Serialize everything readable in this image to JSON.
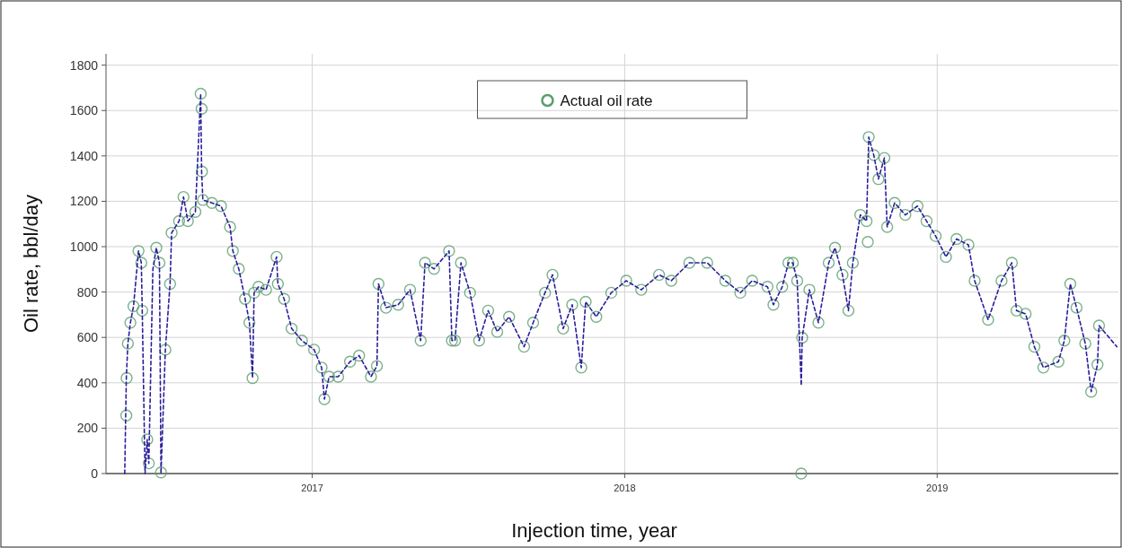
{
  "chart_data": {
    "type": "scatter",
    "xlabel": "Injection time, year",
    "ylabel": "Oil rate, bbl/day",
    "xlim": [
      2016.34,
      2019.58
    ],
    "xticks": [
      2017,
      2018,
      2019
    ],
    "ylim": [
      0,
      1850
    ],
    "yticks": [
      0,
      200,
      400,
      600,
      800,
      1000,
      1200,
      1400,
      1600,
      1800
    ],
    "grid": true,
    "legend": "top",
    "series": [
      {
        "name": "Actual oil rate",
        "marker": "circle",
        "color": "#5a9e6f",
        "x": [
          2016.405,
          2016.406,
          2016.41,
          2016.418,
          2016.428,
          2016.444,
          2016.453,
          2016.456,
          2016.472,
          2016.477,
          2016.501,
          2016.511,
          2016.516,
          2016.53,
          2016.545,
          2016.55,
          2016.574,
          2016.588,
          2016.602,
          2016.626,
          2016.643,
          2016.646,
          2016.647,
          2016.65,
          2016.679,
          2016.708,
          2016.737,
          2016.746,
          2016.765,
          2016.785,
          2016.799,
          2016.809,
          2016.814,
          2016.828,
          2016.852,
          2016.886,
          2016.89,
          2016.91,
          2016.934,
          2016.967,
          2017.006,
          2017.03,
          2017.039,
          2017.054,
          2017.083,
          2017.121,
          2017.15,
          2017.188,
          2017.207,
          2017.212,
          2017.236,
          2017.275,
          2017.313,
          2017.347,
          2017.361,
          2017.39,
          2017.438,
          2017.447,
          2017.457,
          2017.476,
          2017.505,
          2017.534,
          2017.563,
          2017.592,
          2017.63,
          2017.678,
          2017.707,
          2017.745,
          2017.769,
          2017.803,
          2017.832,
          2017.861,
          2017.875,
          2017.909,
          2017.957,
          2018.005,
          2018.053,
          2018.11,
          2018.149,
          2018.207,
          2018.264,
          2018.322,
          2018.37,
          2018.408,
          2018.457,
          2018.476,
          2018.504,
          2018.524,
          2018.538,
          2018.552,
          2018.565,
          2018.568,
          2018.591,
          2018.62,
          2018.653,
          2018.673,
          2018.697,
          2018.716,
          2018.73,
          2018.754,
          2018.774,
          2018.778,
          2018.781,
          2018.797,
          2018.812,
          2018.831,
          2018.84,
          2018.864,
          2018.898,
          2018.937,
          2018.966,
          2018.995,
          2019.028,
          2019.062,
          2019.1,
          2019.12,
          2019.163,
          2019.206,
          2019.239,
          2019.254,
          2019.283,
          2019.311,
          2019.34,
          2019.388,
          2019.407,
          2019.426,
          2019.446,
          2019.474,
          2019.493,
          2019.513,
          2019.518
        ],
        "values": [
          256,
          421,
          573,
          665,
          737,
          981,
          929,
          718,
          150,
          45,
          995,
          929,
          5,
          546,
          836,
          1061,
          1113,
          1219,
          1113,
          1153,
          1674,
          1608,
          1331,
          1206,
          1193,
          1179,
          1087,
          981,
          902,
          770,
          665,
          421,
          797,
          823,
          810,
          955,
          836,
          770,
          639,
          586,
          546,
          467,
          328,
          427,
          427,
          493,
          520,
          427,
          474,
          836,
          731,
          744,
          810,
          586,
          929,
          902,
          981,
          586,
          586,
          929,
          797,
          586,
          718,
          625,
          691,
          559,
          665,
          797,
          876,
          639,
          744,
          467,
          757,
          691,
          797,
          850,
          810,
          876,
          850,
          929,
          929,
          850,
          797,
          850,
          823,
          744,
          823,
          929,
          929,
          850,
          0,
          599,
          810,
          665,
          929,
          995,
          876,
          718,
          929,
          1140,
          1113,
          1021,
          1483,
          1404,
          1298,
          1391,
          1087,
          1193,
          1140,
          1179,
          1113,
          1047,
          955,
          1034,
          1008,
          850,
          678,
          850,
          929,
          718,
          704,
          559,
          467,
          493,
          586,
          836,
          731,
          573,
          361,
          480,
          652
        ]
      },
      {
        "type": "line",
        "color": "#2b1f9a",
        "line_style": "dashed",
        "x": [
          2016.4,
          2016.405,
          2016.41,
          2016.418,
          2016.428,
          2016.444,
          2016.453,
          2016.456,
          2016.465,
          2016.472,
          2016.477,
          2016.49,
          2016.501,
          2016.511,
          2016.516,
          2016.53,
          2016.545,
          2016.55,
          2016.574,
          2016.588,
          2016.602,
          2016.626,
          2016.643,
          2016.646,
          2016.65,
          2016.679,
          2016.708,
          2016.737,
          2016.746,
          2016.765,
          2016.785,
          2016.799,
          2016.809,
          2016.814,
          2016.828,
          2016.852,
          2016.886,
          2016.89,
          2016.91,
          2016.934,
          2016.967,
          2017.006,
          2017.03,
          2017.039,
          2017.054,
          2017.083,
          2017.121,
          2017.15,
          2017.188,
          2017.207,
          2017.212,
          2017.236,
          2017.275,
          2017.313,
          2017.347,
          2017.361,
          2017.39,
          2017.438,
          2017.447,
          2017.457,
          2017.476,
          2017.505,
          2017.534,
          2017.563,
          2017.592,
          2017.63,
          2017.678,
          2017.707,
          2017.745,
          2017.769,
          2017.803,
          2017.832,
          2017.861,
          2017.875,
          2017.909,
          2017.957,
          2018.005,
          2018.053,
          2018.11,
          2018.149,
          2018.207,
          2018.264,
          2018.322,
          2018.37,
          2018.408,
          2018.457,
          2018.476,
          2018.504,
          2018.524,
          2018.538,
          2018.552,
          2018.565,
          2018.568,
          2018.591,
          2018.62,
          2018.653,
          2018.673,
          2018.697,
          2018.716,
          2018.73,
          2018.754,
          2018.774,
          2018.781,
          2018.797,
          2018.812,
          2018.831,
          2018.84,
          2018.864,
          2018.898,
          2018.937,
          2018.966,
          2018.995,
          2019.028,
          2019.062,
          2019.1,
          2019.12,
          2019.163,
          2019.206,
          2019.239,
          2019.254,
          2019.283,
          2019.311,
          2019.34,
          2019.388,
          2019.407,
          2019.426,
          2019.446,
          2019.474,
          2019.493,
          2019.513,
          2019.518,
          2019.575
        ],
        "values": [
          0,
          421,
          573,
          665,
          737,
          981,
          929,
          718,
          0,
          150,
          45,
          900,
          995,
          929,
          0,
          546,
          836,
          1061,
          1113,
          1219,
          1113,
          1153,
          1674,
          1331,
          1206,
          1193,
          1179,
          1087,
          981,
          902,
          770,
          665,
          421,
          797,
          823,
          810,
          955,
          836,
          770,
          639,
          586,
          546,
          467,
          328,
          427,
          427,
          493,
          520,
          427,
          474,
          836,
          731,
          744,
          810,
          586,
          929,
          902,
          981,
          586,
          586,
          929,
          797,
          586,
          718,
          625,
          691,
          559,
          665,
          797,
          876,
          639,
          744,
          467,
          757,
          691,
          797,
          850,
          810,
          876,
          850,
          929,
          929,
          850,
          797,
          850,
          823,
          744,
          823,
          929,
          929,
          850,
          388,
          599,
          810,
          665,
          929,
          995,
          876,
          718,
          929,
          1140,
          1113,
          1483,
          1404,
          1298,
          1391,
          1087,
          1193,
          1140,
          1179,
          1113,
          1047,
          955,
          1034,
          1008,
          850,
          678,
          850,
          929,
          718,
          704,
          559,
          467,
          493,
          586,
          836,
          731,
          573,
          361,
          480,
          652,
          559
        ]
      }
    ]
  }
}
